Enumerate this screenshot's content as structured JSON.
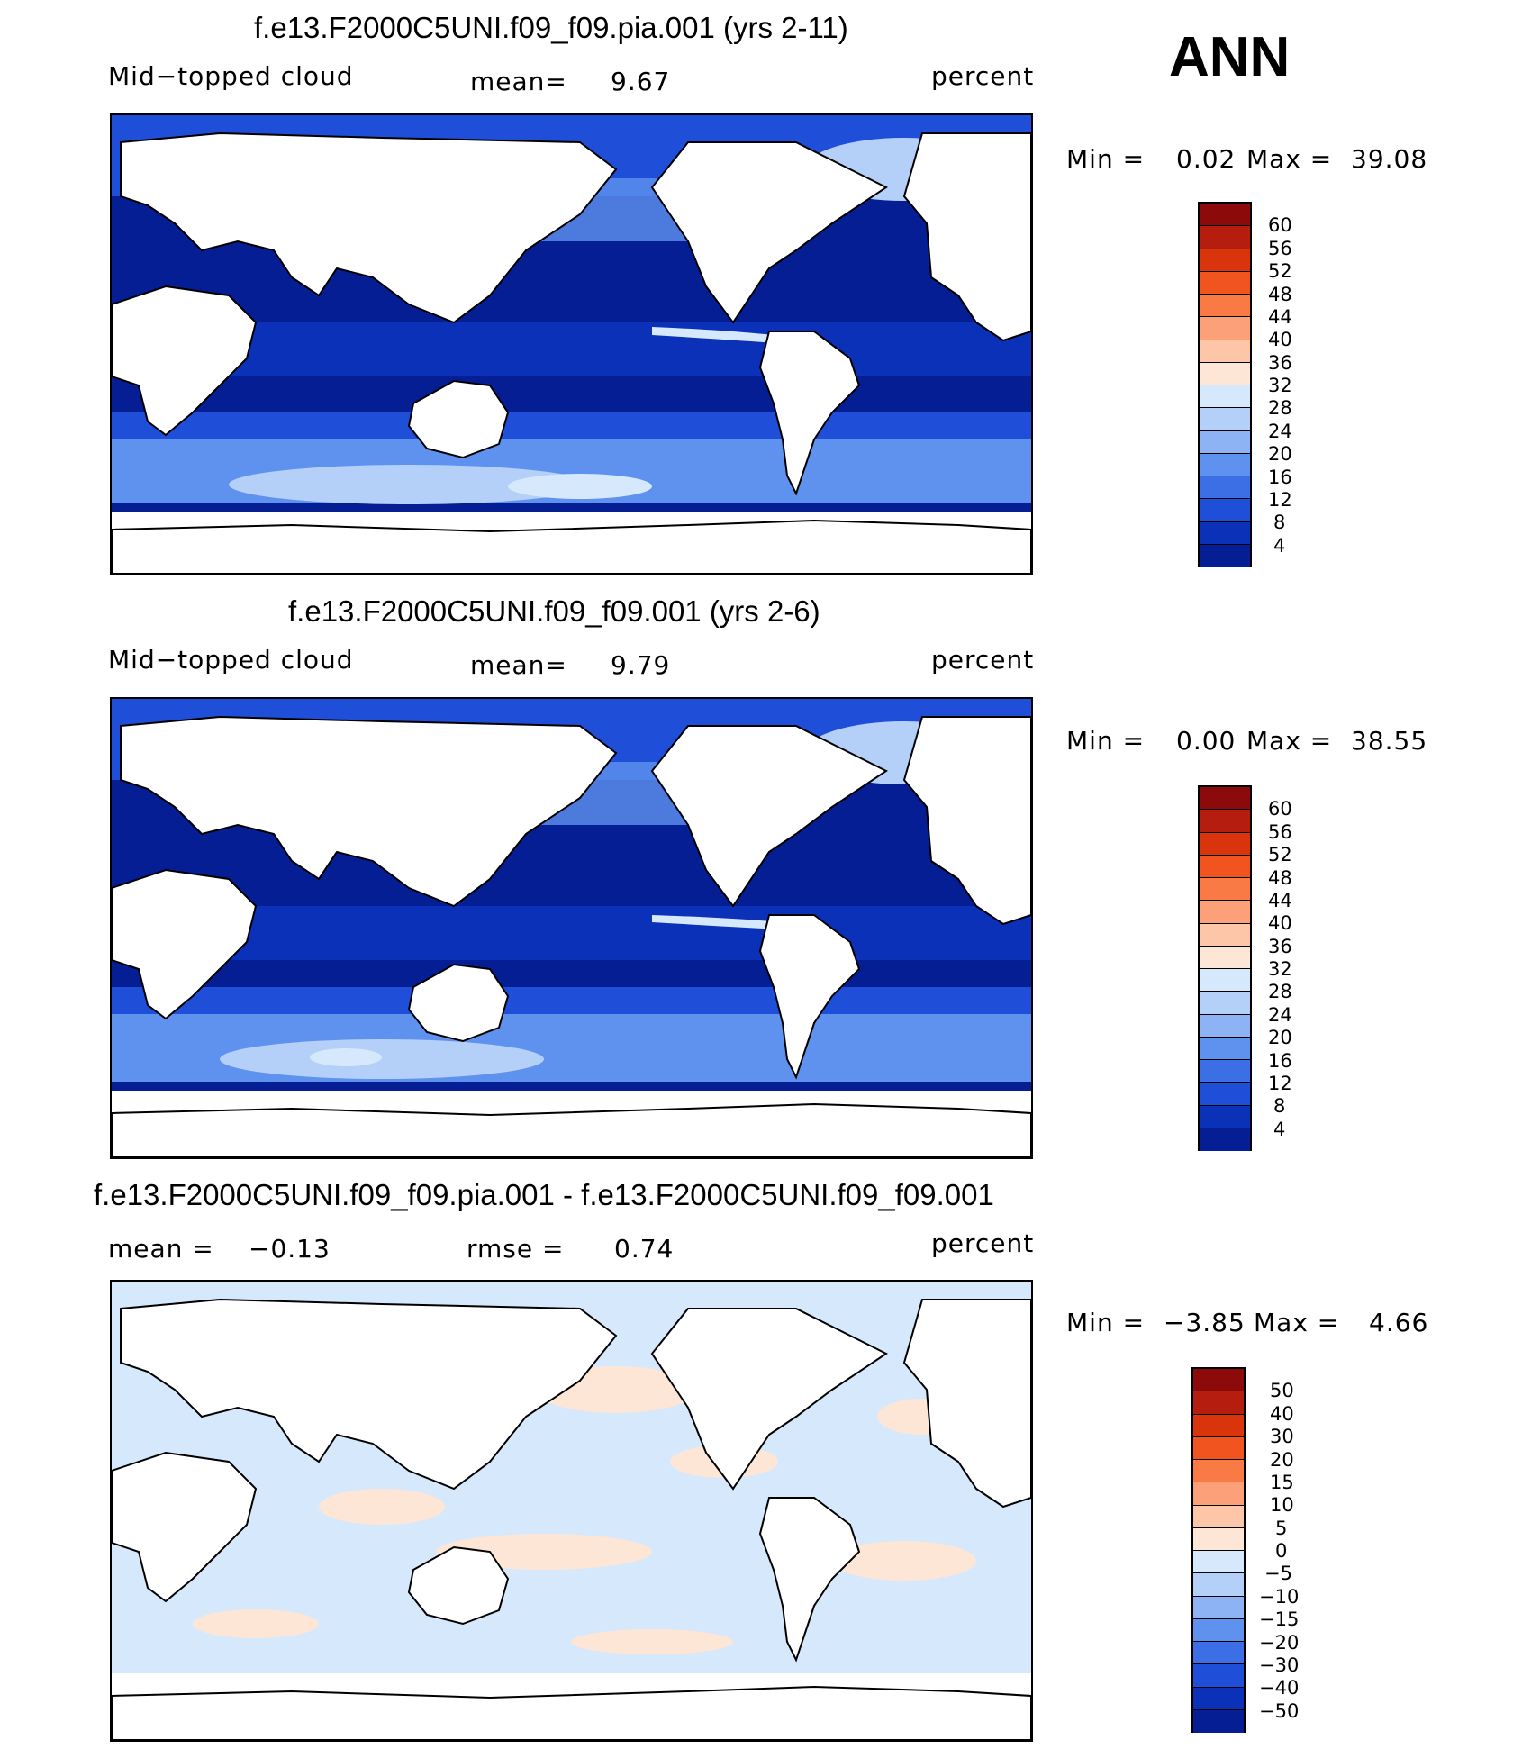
{
  "season": "ANN",
  "panels": [
    {
      "title": "f.e13.F2000C5UNI.f09_f09.pia.001 (yrs 2-11)",
      "left_label": "Mid−topped cloud",
      "center_label": "mean=",
      "center_value": "9.67",
      "right_label": "percent",
      "min_label": "Min =",
      "min_value": "0.02",
      "max_label": "Max =",
      "max_value": "39.08",
      "colorbar_ticks": [
        "60",
        "56",
        "52",
        "48",
        "44",
        "40",
        "36",
        "32",
        "28",
        "24",
        "20",
        "16",
        "12",
        "8",
        "4"
      ]
    },
    {
      "title": "f.e13.F2000C5UNI.f09_f09.001 (yrs 2-6)",
      "left_label": "Mid−topped cloud",
      "center_label": "mean=",
      "center_value": "9.79",
      "right_label": "percent",
      "min_label": "Min =",
      "min_value": "0.00",
      "max_label": "Max =",
      "max_value": "38.55",
      "colorbar_ticks": [
        "60",
        "56",
        "52",
        "48",
        "44",
        "40",
        "36",
        "32",
        "28",
        "24",
        "20",
        "16",
        "12",
        "8",
        "4"
      ]
    },
    {
      "title": "f.e13.F2000C5UNI.f09_f09.pia.001 - f.e13.F2000C5UNI.f09_f09.001",
      "left_label": "mean =",
      "left_value": "−0.13",
      "center_label": "rmse =",
      "center_value": "0.74",
      "right_label": "percent",
      "min_label": "Min =",
      "min_value": "−3.85",
      "max_label": "Max =",
      "max_value": "4.66",
      "colorbar_ticks": [
        "50",
        "40",
        "30",
        "20",
        "15",
        "10",
        "5",
        "0",
        "−5",
        "−10",
        "−15",
        "−20",
        "−30",
        "−40",
        "−50"
      ]
    }
  ],
  "colors": {
    "abs_scale": [
      "#8c0a0a",
      "#b51e0f",
      "#d9340c",
      "#f25420",
      "#fa7a45",
      "#fca07a",
      "#fdc6a8",
      "#fde6d6",
      "#d6e8fb",
      "#b4cff8",
      "#8db3f5",
      "#5f92ef",
      "#3c6fe6",
      "#1f4fd8",
      "#0b31b8",
      "#061e94"
    ],
    "diff_scale": [
      "#8c0a0a",
      "#b51e0f",
      "#d9340c",
      "#f25420",
      "#fa7a45",
      "#fca07a",
      "#fdc6a8",
      "#fde6d6",
      "#d6e8fb",
      "#b4cff8",
      "#8db3f5",
      "#5f92ef",
      "#3c6fe6",
      "#1f4fd8",
      "#0b31b8",
      "#061e94"
    ],
    "ocean_deep": "#061e94",
    "ocean_mid": "#1f4fd8",
    "ocean_light": "#8db3f5",
    "ocean_pale": "#d6e8fb",
    "diff_neg": "#d6e8fb",
    "diff_pos": "#fde6d6",
    "land": "#ffffff"
  }
}
